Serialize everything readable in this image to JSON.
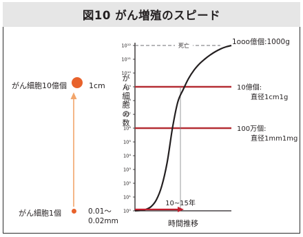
{
  "title": "図10 がん増殖のスピード",
  "colors": {
    "curve": "#231f20",
    "reference_lines": "#b52d34",
    "death_line": "#6d6e71",
    "dots": "#e8622c",
    "arrow": "#f2a56b",
    "timeline_arrow": "#c21f2e",
    "title_band": "#e6e6e6"
  },
  "left_panel": {
    "top_label": "がん細胞10億個",
    "top_size": "1cm",
    "bottom_label": "がん細胞1個",
    "bottom_size_line1": "0.01〜",
    "bottom_size_line2": "0.02mm"
  },
  "chart_data": {
    "type": "line",
    "title": "",
    "xlabel": "時間推移",
    "ylabel": "がん細胞の数",
    "y_scale": "log10",
    "ylim_exponent": [
      0,
      12
    ],
    "y_tick_labels": [
      "10⁰",
      "10¹",
      "10²",
      "10³",
      "10⁴",
      "10⁵",
      "10⁶",
      "10⁷",
      "10⁸",
      "10⁹",
      "10¹⁰",
      "10¹¹",
      "10¹²"
    ],
    "x_ticks": [],
    "series": [
      {
        "values_log10": [
          0,
          0.03,
          0.1,
          0.3,
          0.8,
          1.8,
          3.5,
          6.0,
          7.9,
          8.8,
          9.6,
          10.2,
          10.65,
          11.0,
          11.3,
          11.55,
          11.75,
          11.9,
          12.0
        ]
      }
    ],
    "reference_lines": [
      {
        "y_log10": 12,
        "label": "死亡",
        "style": "dashed"
      },
      {
        "y_log10": 9,
        "label_line1": "10億個:",
        "label_line2": "直径1cm1g"
      },
      {
        "y_log10": 6,
        "label_line1": "100万個:",
        "label_line2": "直径1mm1mg"
      }
    ],
    "curve_end_label": "1ooo億個:1000g",
    "interval_label": "10~15年"
  }
}
